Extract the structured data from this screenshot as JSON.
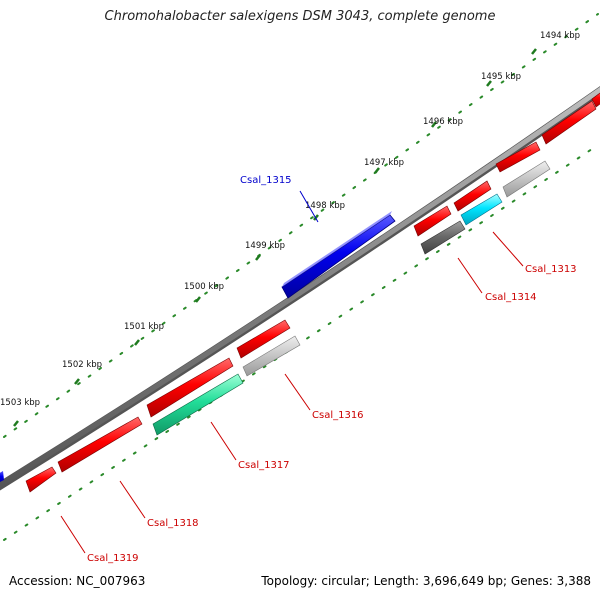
{
  "title": "Chromohalobacter salexigens DSM 3043, complete genome",
  "footer": {
    "accession": "Accession: NC_007963",
    "summary": "Topology: circular; Length: 3,696,649 bp; Genes: 3,388"
  },
  "colors": {
    "forward_gene": "#ff0000",
    "highlight_gene": "#0000ff",
    "backbone": "#808080",
    "tick": "#2a8a2a",
    "label_red": "#cc0000",
    "label_blue": "#0000cc",
    "rna_green": "#22dd99",
    "rna_cyan": "#00e5ff",
    "pseudo_dark": "#707070",
    "pseudo_light": "#c8c8c8"
  },
  "kbp_labels": [
    "1494 kbp",
    "1495 kbp",
    "1496 kbp",
    "1497 kbp",
    "1498 kbp",
    "1499 kbp",
    "1500 kbp",
    "1501 kbp",
    "1502 kbp",
    "1503 kbp"
  ],
  "gene_labels": {
    "csal_1313": "Csal_1313",
    "csal_1314": "Csal_1314",
    "csal_1315": "Csal_1315",
    "csal_1316": "Csal_1316",
    "csal_1317": "Csal_1317",
    "csal_1318": "Csal_1318",
    "csal_1319": "Csal_1319"
  }
}
